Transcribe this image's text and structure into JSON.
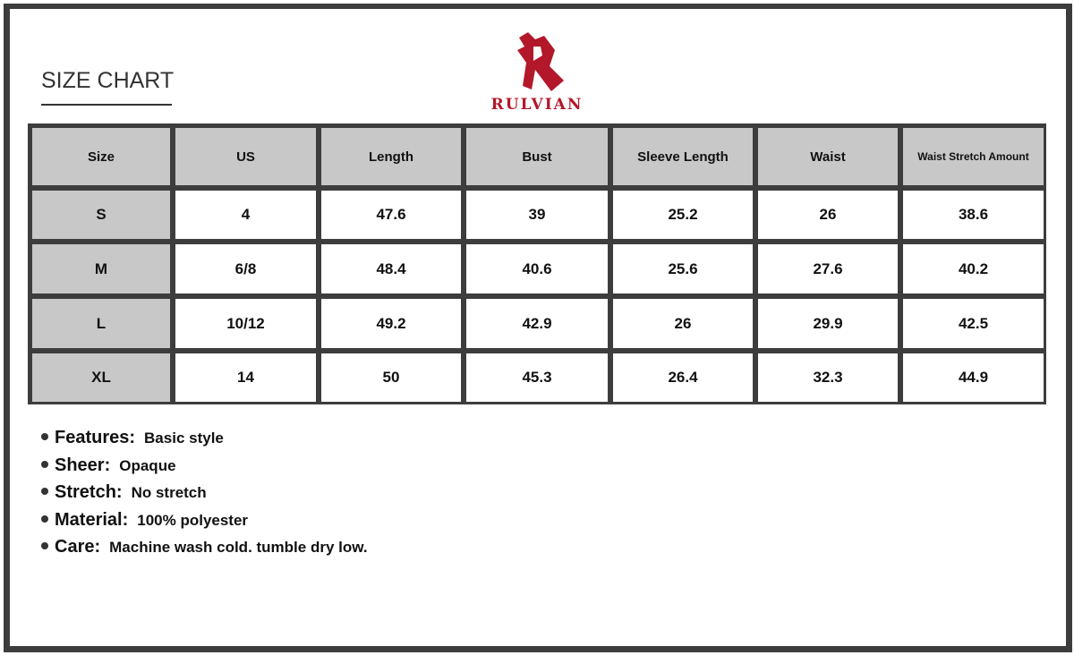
{
  "title": "SIZE CHART",
  "brand": {
    "name": "RULVIAN",
    "color": "#b3172a"
  },
  "table": {
    "headers": [
      "Size",
      "US",
      "Length",
      "Bust",
      "Sleeve Length",
      "Waist",
      "Waist Stretch Amount"
    ],
    "rows": [
      [
        "S",
        "4",
        "47.6",
        "39",
        "25.2",
        "26",
        "38.6"
      ],
      [
        "M",
        "6/8",
        "48.4",
        "40.6",
        "25.6",
        "27.6",
        "40.2"
      ],
      [
        "L",
        "10/12",
        "49.2",
        "42.9",
        "26",
        "29.9",
        "42.5"
      ],
      [
        "XL",
        "14",
        "50",
        "45.3",
        "26.4",
        "32.3",
        "44.9"
      ]
    ]
  },
  "notes": [
    {
      "label": "Features:",
      "value": "Basic style"
    },
    {
      "label": "Sheer:",
      "value": "Opaque"
    },
    {
      "label": "Stretch:",
      "value": "No stretch"
    },
    {
      "label": "Material:",
      "value": "100% polyester"
    },
    {
      "label": "Care:",
      "value": "Machine wash cold. tumble dry low."
    }
  ]
}
